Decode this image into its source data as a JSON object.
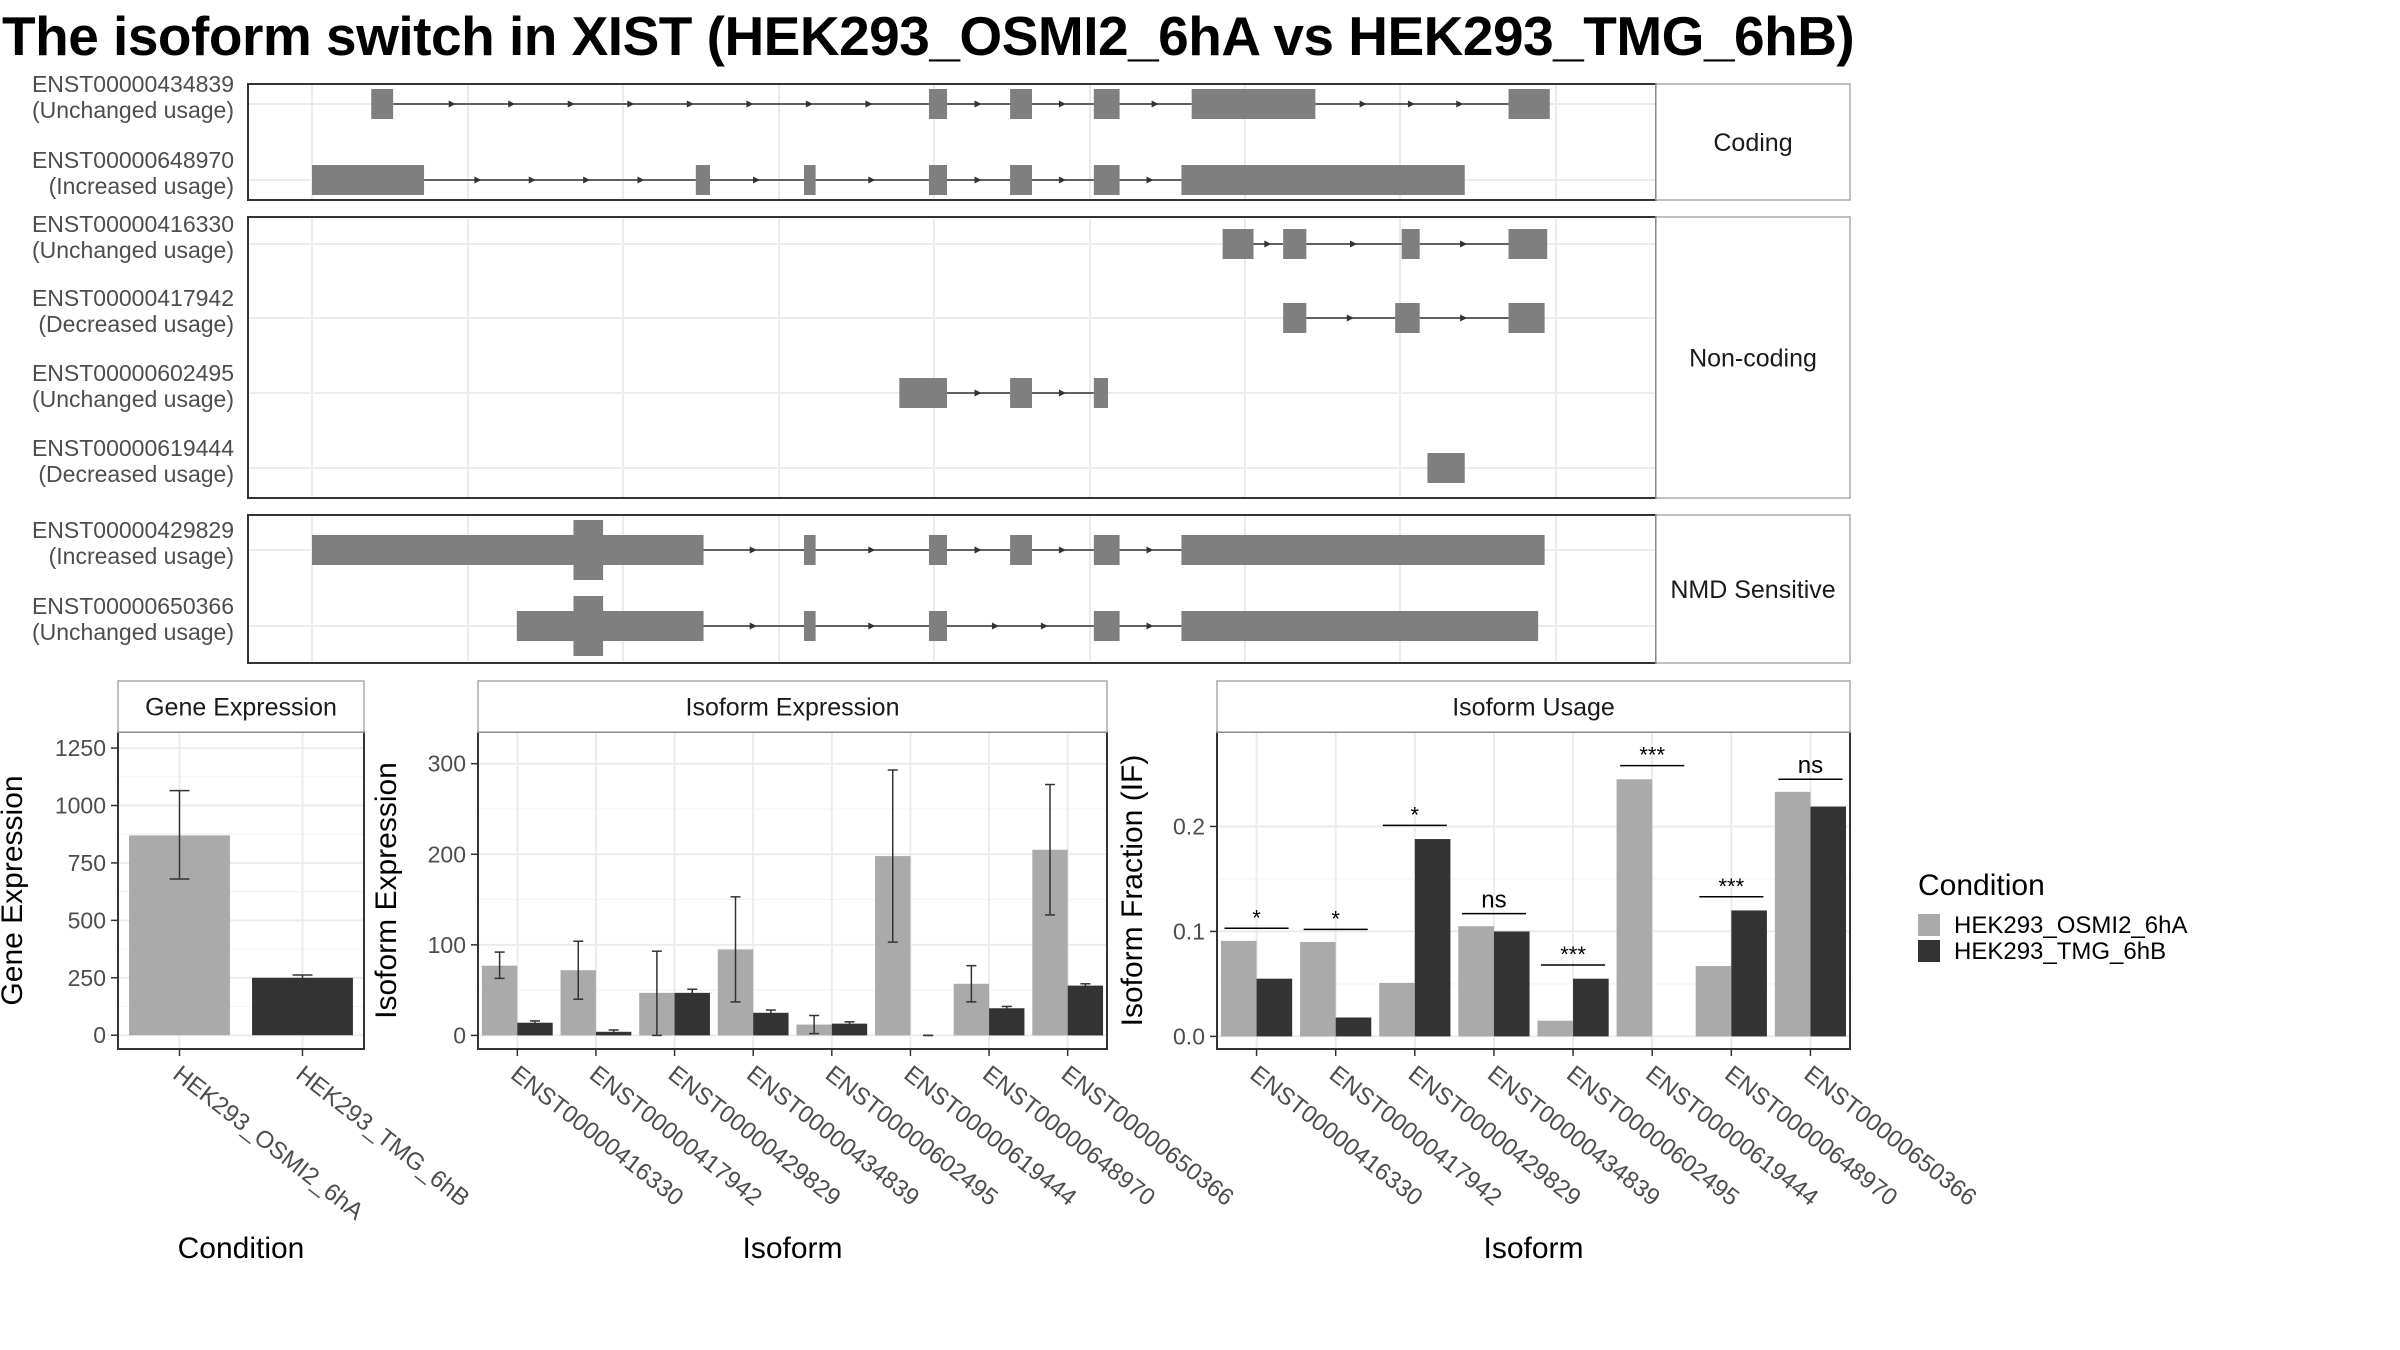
{
  "title": "The isoform switch in XIST (HEK293_OSMI2_6hA vs HEK293_TMG_6hB)",
  "colors": {
    "exon": "#7f7f7f",
    "intron": "#333333",
    "osmi2": "#aaaaaa",
    "tmg": "#333333",
    "grid": "#ebebeb",
    "strip_border": "#aaaaaa",
    "panel_border": "#333333"
  },
  "chart_data": [
    {
      "type": "gene_structure",
      "x_range": [
        0,
        100
      ],
      "groups": [
        {
          "label": "Coding",
          "transcripts": [
            {
              "id": "ENST00000434839",
              "usage": "(Unchanged usage)",
              "exons": [
                [
                  4.6,
                  6.3
                ],
                [
                  47.9,
                  49.3
                ],
                [
                  54.2,
                  55.9
                ],
                [
                  60.7,
                  62.7
                ],
                [
                  68.3,
                  77.9
                ],
                [
                  92.9,
                  96.1
                ]
              ]
            },
            {
              "id": "ENST00000648970",
              "usage": "(Increased usage)",
              "exons": [
                [
                  0,
                  8.7
                ],
                [
                  29.8,
                  30.9
                ],
                [
                  38.2,
                  39.1
                ],
                [
                  47.9,
                  49.3
                ],
                [
                  54.2,
                  55.9
                ],
                [
                  60.7,
                  62.7
                ],
                [
                  67.5,
                  89.5
                ]
              ]
            }
          ]
        },
        {
          "label": "Non-coding",
          "transcripts": [
            {
              "id": "ENST00000416330",
              "usage": "(Unchanged usage)",
              "exons": [
                [
                  70.7,
                  73.1
                ],
                [
                  75.4,
                  77.2
                ],
                [
                  84.6,
                  86.0
                ],
                [
                  92.9,
                  95.9
                ]
              ]
            },
            {
              "id": "ENST00000417942",
              "usage": "(Decreased usage)",
              "exons": [
                [
                  75.4,
                  77.2
                ],
                [
                  84.1,
                  86.0
                ],
                [
                  92.9,
                  95.7
                ]
              ]
            },
            {
              "id": "ENST00000602495",
              "usage": "(Unchanged usage)",
              "exons": [
                [
                  45.6,
                  49.3
                ],
                [
                  54.2,
                  55.9
                ],
                [
                  60.7,
                  61.8
                ]
              ]
            },
            {
              "id": "ENST00000619444",
              "usage": "(Decreased usage)",
              "exons": [
                [
                  86.6,
                  89.5
                ]
              ]
            }
          ]
        },
        {
          "label": "NMD Sensitive",
          "transcripts": [
            {
              "id": "ENST00000429829",
              "usage": "(Increased usage)",
              "exons": [
                [
                  0,
                  30.4
                ],
                [
                  38.2,
                  39.1
                ],
                [
                  47.9,
                  49.3
                ],
                [
                  54.2,
                  55.9
                ],
                [
                  60.7,
                  62.7
                ],
                [
                  67.5,
                  95.7
                ]
              ],
              "cds": [
                [
                  20.3,
                  22.6
                ]
              ]
            },
            {
              "id": "ENST00000650366",
              "usage": "(Unchanged usage)",
              "exons": [
                [
                  15.9,
                  30.4
                ],
                [
                  38.2,
                  39.1
                ],
                [
                  47.9,
                  49.3
                ],
                [
                  60.7,
                  62.7
                ],
                [
                  67.5,
                  95.2
                ]
              ],
              "cds": [
                [
                  20.3,
                  22.6
                ]
              ]
            }
          ]
        }
      ]
    },
    {
      "type": "bar",
      "strip": "Gene Expression",
      "categories": [
        "HEK293_OSMI2_6hA",
        "HEK293_TMG_6hB"
      ],
      "values": [
        870,
        250
      ],
      "err_low": [
        680,
        240
      ],
      "err_high": [
        1065,
        262
      ],
      "ylim": [
        -60,
        1320
      ],
      "yticks": [
        0,
        250,
        500,
        750,
        1000,
        1250
      ],
      "ylabel": "Gene Expression",
      "xlabel": "Condition"
    },
    {
      "type": "bar",
      "strip": "Isoform Expression",
      "categories": [
        "ENST00000416330",
        "ENST00000417942",
        "ENST00000429829",
        "ENST00000434839",
        "ENST00000602495",
        "ENST00000619444",
        "ENST00000648970",
        "ENST00000650366"
      ],
      "series": [
        {
          "name": "HEK293_OSMI2_6hA",
          "values": [
            77,
            72,
            47,
            95,
            12,
            198,
            57,
            205
          ],
          "err_low": [
            63,
            40,
            0,
            37,
            2,
            103,
            37,
            133
          ],
          "err_high": [
            92,
            104,
            93,
            153,
            22,
            293,
            77,
            277
          ]
        },
        {
          "name": "HEK293_TMG_6hB",
          "values": [
            14,
            4,
            47,
            25,
            13,
            0,
            30,
            55
          ],
          "err_low": [
            12,
            2,
            43,
            22,
            11,
            0,
            28,
            53
          ],
          "err_high": [
            16,
            6,
            51,
            28,
            15,
            0,
            32,
            57
          ]
        }
      ],
      "ylim": [
        -15,
        335
      ],
      "yticks": [
        0,
        100,
        200,
        300
      ],
      "ylabel": "Isoform Expression",
      "xlabel": "Isoform"
    },
    {
      "type": "bar",
      "strip": "Isoform Usage",
      "categories": [
        "ENST00000416330",
        "ENST00000417942",
        "ENST00000429829",
        "ENST00000434839",
        "ENST00000602495",
        "ENST00000619444",
        "ENST00000648970",
        "ENST00000650366"
      ],
      "series": [
        {
          "name": "HEK293_OSMI2_6hA",
          "values": [
            0.091,
            0.09,
            0.051,
            0.105,
            0.015,
            0.245,
            0.067,
            0.233
          ]
        },
        {
          "name": "HEK293_TMG_6hB",
          "values": [
            0.055,
            0.018,
            0.188,
            0.1,
            0.055,
            0.0,
            0.12,
            0.219
          ]
        }
      ],
      "significance": [
        "*",
        "*",
        "*",
        "ns",
        "***",
        "***",
        "***",
        "ns"
      ],
      "sig_y": [
        0.103,
        0.102,
        0.201,
        0.117,
        0.068,
        0.258,
        0.133,
        0.245
      ],
      "ylim": [
        -0.012,
        0.29
      ],
      "yticks": [
        0.0,
        0.1,
        0.2
      ],
      "ylabel": "Isoform Fraction (IF)",
      "xlabel": "Isoform"
    }
  ],
  "legend": {
    "title": "Condition",
    "items": [
      {
        "label": "HEK293_OSMI2_6hA",
        "color": "#aaaaaa"
      },
      {
        "label": "HEK293_TMG_6hB",
        "color": "#333333"
      }
    ]
  }
}
